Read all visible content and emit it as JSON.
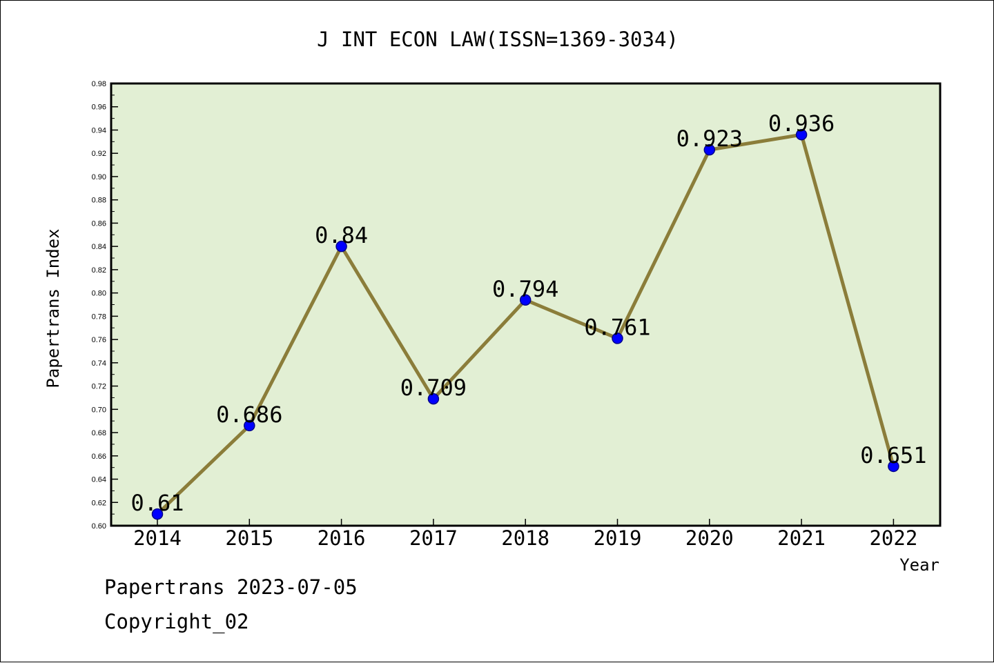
{
  "chart_data": {
    "type": "line",
    "title": "J INT ECON LAW(ISSN=1369-3034)",
    "xlabel": "Year",
    "ylabel": "Papertrans Index",
    "categories": [
      "2014",
      "2015",
      "2016",
      "2017",
      "2018",
      "2019",
      "2020",
      "2021",
      "2022"
    ],
    "series": [
      {
        "values": [
          0.61,
          0.686,
          0.84,
          0.709,
          0.794,
          0.761,
          0.923,
          0.936,
          0.651
        ],
        "data_labels": [
          "0.61",
          "0.686",
          "0.84",
          "0.709",
          "0.794",
          "0.761",
          "0.923",
          "0.936",
          "0.651"
        ]
      }
    ],
    "ylim": [
      0.6,
      0.98
    ],
    "yticks": [
      "0.60",
      "0.62",
      "0.64",
      "0.66",
      "0.68",
      "0.70",
      "0.72",
      "0.74",
      "0.76",
      "0.78",
      "0.80",
      "0.82",
      "0.84",
      "0.86",
      "0.88",
      "0.90",
      "0.92",
      "0.94",
      "0.96",
      "0.98"
    ],
    "grid": false,
    "legend": "none",
    "colors": {
      "plot_background": "#e2efd4",
      "line": "#8b7d3a",
      "marker_fill": "#0000ff",
      "marker_edge": "#00008b"
    }
  },
  "footer": {
    "line1": "Papertrans 2023-07-05",
    "line2": "Copyright_02"
  }
}
